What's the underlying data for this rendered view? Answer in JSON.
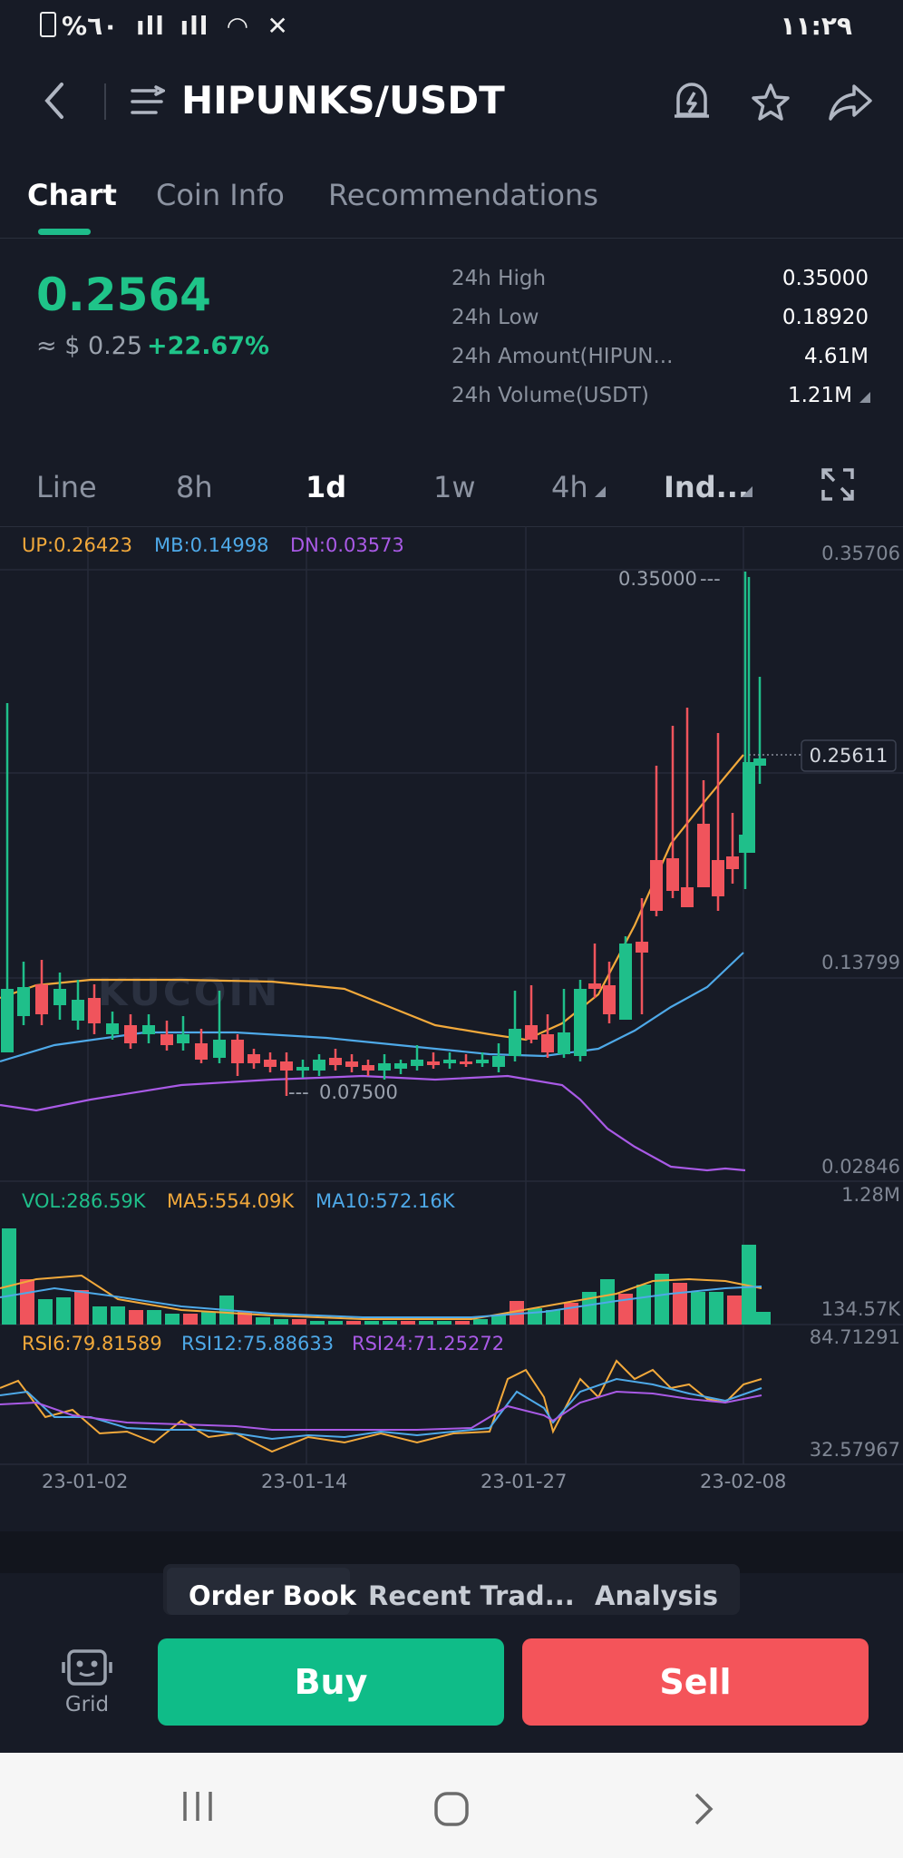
{
  "status": {
    "left": "%٦٠",
    "time": "١١:٢٩"
  },
  "header": {
    "title": "HIPUNKS/USDT"
  },
  "tabs": [
    {
      "label": "Chart"
    },
    {
      "label": "Coin Info"
    },
    {
      "label": "Recommendations"
    }
  ],
  "ticker": {
    "price": "0.2564",
    "usd": "≈ $ 0.25",
    "change": "+22.67%",
    "stats": [
      {
        "label": "24h High",
        "value": "0.35000"
      },
      {
        "label": "24h Low",
        "value": "0.18920"
      },
      {
        "label": "24h Amount(HIPUN...",
        "value": "4.61M"
      },
      {
        "label": "24h Volume(USDT)",
        "value": "1.21M"
      }
    ]
  },
  "intervals": [
    {
      "label": "Line"
    },
    {
      "label": "8h"
    },
    {
      "label": "1d"
    },
    {
      "label": "1w"
    },
    {
      "label": "4h"
    },
    {
      "label": "Ind..."
    }
  ],
  "chart": {
    "boll": {
      "up": "UP:0.26423",
      "mb": "MB:0.14998",
      "dn": "DN:0.03573"
    },
    "price_axis": [
      "0.35706",
      "0.13799",
      "0.02846"
    ],
    "high_marker": "0.35000",
    "low_marker": "0.07500",
    "last_price": "0.25611",
    "watermark": "KUCOIN",
    "vol": {
      "vol": "VOL:286.59K",
      "ma5": "MA5:554.09K",
      "ma10": "MA10:572.16K",
      "max": "1.28M",
      "min": "134.57K"
    },
    "rsi": {
      "rsi6": "RSI6:79.81589",
      "rsi12": "RSI12:75.88633",
      "rsi24": "RSI24:71.25272",
      "max": "84.71291",
      "min": "32.57967"
    },
    "dates": [
      "23-01-02",
      "23-01-14",
      "23-01-27",
      "23-02-08"
    ],
    "colors": {
      "up": "#1fbf8a",
      "down": "#f0545c",
      "boll_up": "#f2a93b",
      "boll_mb": "#4ea9e8",
      "boll_dn": "#a95ae6"
    }
  },
  "order_tabs": [
    {
      "label": "Order Book"
    },
    {
      "label": "Recent Trad..."
    },
    {
      "label": "Analysis"
    }
  ],
  "actions": {
    "grid": "Grid",
    "buy": "Buy",
    "sell": "Sell"
  }
}
